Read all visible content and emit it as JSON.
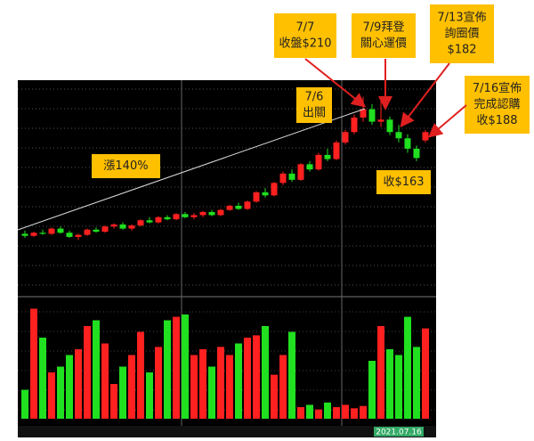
{
  "chart_data": {
    "type": "candlestick",
    "up_color": "#ff2020",
    "down_color": "#20e020",
    "ylim": [
      32,
      238
    ],
    "volume_ylim": [
      0,
      100
    ],
    "open": [
      90,
      88,
      91,
      90,
      95,
      91,
      87,
      89,
      94,
      92,
      97,
      99,
      95,
      98,
      103,
      101,
      106,
      104,
      109,
      106,
      108,
      111,
      108,
      113,
      117,
      114,
      121,
      130,
      127,
      139,
      148,
      142,
      157,
      152,
      166,
      162,
      178,
      188,
      202,
      210,
      198,
      200,
      188,
      182,
      172,
      180
    ],
    "high": [
      93,
      92,
      94,
      96,
      97,
      93,
      90,
      95,
      96,
      98,
      100,
      101,
      99,
      104,
      106,
      107,
      108,
      110,
      111,
      110,
      112,
      113,
      114,
      118,
      120,
      122,
      131,
      134,
      140,
      150,
      152,
      158,
      160,
      168,
      172,
      180,
      190,
      205,
      222,
      215,
      218,
      203,
      195,
      186,
      175,
      190
    ],
    "low": [
      86,
      87,
      89,
      89,
      90,
      86,
      84,
      88,
      91,
      91,
      95,
      94,
      93,
      97,
      100,
      100,
      103,
      103,
      105,
      104,
      106,
      107,
      107,
      112,
      113,
      113,
      120,
      125,
      126,
      137,
      140,
      141,
      150,
      151,
      160,
      161,
      176,
      186,
      198,
      195,
      193,
      185,
      178,
      168,
      160,
      178
    ],
    "close": [
      88,
      91,
      90,
      95,
      91,
      87,
      89,
      94,
      92,
      97,
      99,
      95,
      98,
      103,
      101,
      106,
      104,
      109,
      106,
      108,
      111,
      108,
      113,
      117,
      114,
      121,
      130,
      127,
      139,
      148,
      142,
      157,
      152,
      166,
      162,
      178,
      188,
      202,
      210,
      198,
      200,
      188,
      182,
      172,
      163,
      188
    ],
    "volume": [
      25,
      95,
      70,
      40,
      45,
      55,
      60,
      80,
      85,
      65,
      30,
      45,
      55,
      75,
      40,
      62,
      85,
      88,
      90,
      55,
      60,
      45,
      62,
      55,
      65,
      70,
      72,
      80,
      38,
      55,
      75,
      10,
      12,
      8,
      14,
      10,
      12,
      9,
      11,
      50,
      80,
      60,
      55,
      88,
      62,
      78
    ],
    "date_label": "2021.07.16",
    "annotations": [
      {
        "lines": [
          "7/7",
          "收盤$210"
        ]
      },
      {
        "lines": [
          "7/9拜登",
          "關心運價"
        ]
      },
      {
        "lines": [
          "7/13宣佈",
          "詢圈價",
          "$182"
        ]
      },
      {
        "lines": [
          "7/6",
          "出關"
        ]
      },
      {
        "lines": [
          "7/16宣佈",
          "完成認購",
          "收$188"
        ]
      },
      {
        "lines": [
          "漲140%"
        ]
      },
      {
        "lines": [
          "收$163"
        ]
      }
    ]
  }
}
